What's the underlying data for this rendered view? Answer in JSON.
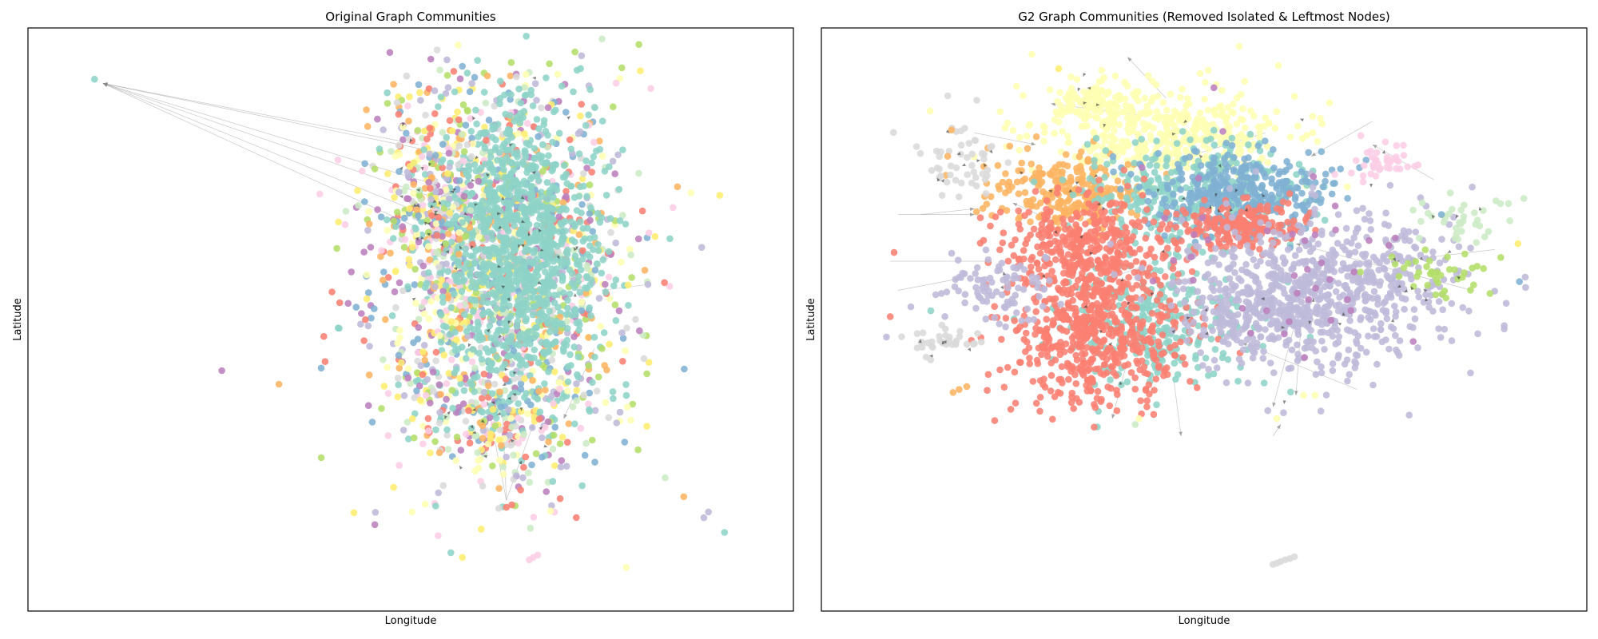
{
  "chart_data": [
    {
      "type": "scatter",
      "title": "Original Graph Communities",
      "xlabel": "Longitude",
      "ylabel": "Latitude",
      "ticks": "none",
      "grid": false,
      "legend": "none",
      "palette": [
        "#8dd3c7",
        "#ffffb3",
        "#bebada",
        "#fb8072",
        "#80b1d3",
        "#fdb462",
        "#b3de69",
        "#fccde5",
        "#d9d9d9",
        "#bc80bd",
        "#ccebc5",
        "#ffed6f"
      ],
      "edge_color": "#999999",
      "note_values": "normalized coordinates: x in [0,1] left to right, y in [0,1] bottom to top",
      "xlim": [
        0,
        1
      ],
      "ylim": [
        0,
        1
      ],
      "clusters": [
        {
          "community": "mixed",
          "center": [
            0.61,
            0.58
          ],
          "spread": [
            0.085,
            0.17
          ],
          "count": 1600
        },
        {
          "community": 0,
          "center": [
            0.64,
            0.62
          ],
          "spread": [
            0.05,
            0.13
          ],
          "count": 1000
        },
        {
          "community": "mixed",
          "center": [
            0.62,
            0.32
          ],
          "spread": [
            0.05,
            0.04
          ],
          "count": 140
        },
        {
          "community": "mixed",
          "center": [
            0.53,
            0.72
          ],
          "spread": [
            0.03,
            0.08
          ],
          "count": 160
        }
      ],
      "points": [
        {
          "x": 0.087,
          "y": 0.912,
          "community": 0
        },
        {
          "x": 0.625,
          "y": 0.178,
          "community": 3
        },
        {
          "x": 0.632,
          "y": 0.182,
          "community": 3
        },
        {
          "x": 0.615,
          "y": 0.176,
          "community": 8
        },
        {
          "x": 0.66,
          "y": 0.092,
          "community": 7
        },
        {
          "x": 0.655,
          "y": 0.088,
          "community": 7
        },
        {
          "x": 0.666,
          "y": 0.096,
          "community": 7
        },
        {
          "x": 0.889,
          "y": 0.17,
          "community": 2
        },
        {
          "x": 0.883,
          "y": 0.16,
          "community": 2
        },
        {
          "x": 0.91,
          "y": 0.135,
          "community": 0
        },
        {
          "x": 0.81,
          "y": 0.56,
          "community": 2
        },
        {
          "x": 0.79,
          "y": 0.355,
          "community": 6
        },
        {
          "x": 0.783,
          "y": 0.35,
          "community": 1
        },
        {
          "x": 0.58,
          "y": 0.905,
          "community": 2
        },
        {
          "x": 0.63,
          "y": 0.85,
          "community": 0
        },
        {
          "x": 0.49,
          "y": 0.83,
          "community": 1
        },
        {
          "x": 0.47,
          "y": 0.75,
          "community": 11
        },
        {
          "x": 0.48,
          "y": 0.78,
          "community": 1
        },
        {
          "x": 0.75,
          "y": 0.45,
          "community": 6
        },
        {
          "x": 0.52,
          "y": 0.37,
          "community": 7
        }
      ],
      "edges": [
        [
          [
            0.098,
            0.905
          ],
          [
            0.51,
            0.8
          ]
        ],
        [
          [
            0.098,
            0.905
          ],
          [
            0.505,
            0.66
          ]
        ],
        [
          [
            0.098,
            0.905
          ],
          [
            0.535,
            0.73
          ]
        ],
        [
          [
            0.098,
            0.905
          ],
          [
            0.55,
            0.7
          ]
        ],
        [
          [
            0.098,
            0.905
          ],
          [
            0.56,
            0.78
          ]
        ],
        [
          [
            0.098,
            0.905
          ],
          [
            0.63,
            0.62
          ]
        ],
        [
          [
            0.62,
            0.34
          ],
          [
            0.625,
            0.19
          ]
        ],
        [
          [
            0.6,
            0.36
          ],
          [
            0.625,
            0.19
          ]
        ],
        [
          [
            0.66,
            0.32
          ],
          [
            0.625,
            0.19
          ]
        ],
        [
          [
            0.7,
            0.33
          ],
          [
            0.74,
            0.45
          ]
        ],
        [
          [
            0.75,
            0.55
          ],
          [
            0.81,
            0.56
          ]
        ]
      ]
    },
    {
      "type": "scatter",
      "title": "G2 Graph Communities (Removed Isolated & Leftmost Nodes)",
      "xlabel": "Longitude",
      "ylabel": "Latitude",
      "ticks": "none",
      "grid": false,
      "legend": "none",
      "palette": [
        "#8dd3c7",
        "#ffffb3",
        "#bebada",
        "#fb8072",
        "#80b1d3",
        "#fdb462",
        "#b3de69",
        "#fccde5",
        "#d9d9d9",
        "#bc80bd",
        "#ccebc5",
        "#ffed6f"
      ],
      "edge_color": "#999999",
      "note_values": "normalized coordinates: x in [0,1] left to right, y in [0,1] bottom to top",
      "xlim": [
        0,
        1
      ],
      "ylim": [
        0,
        1
      ],
      "clusters": [
        {
          "community": 1,
          "center": [
            0.44,
            0.82
          ],
          "spread": [
            0.085,
            0.04
          ],
          "count": 450
        },
        {
          "community": 1,
          "center": [
            0.36,
            0.88
          ],
          "spread": [
            0.03,
            0.02
          ],
          "count": 80
        },
        {
          "community": 5,
          "center": [
            0.32,
            0.72
          ],
          "spread": [
            0.05,
            0.03
          ],
          "count": 250
        },
        {
          "community": 0,
          "center": [
            0.48,
            0.72
          ],
          "spread": [
            0.07,
            0.045
          ],
          "count": 320
        },
        {
          "community": 0,
          "center": [
            0.43,
            0.5
          ],
          "spread": [
            0.06,
            0.06
          ],
          "count": 300
        },
        {
          "community": 4,
          "center": [
            0.55,
            0.72
          ],
          "spread": [
            0.06,
            0.035
          ],
          "count": 350
        },
        {
          "community": 3,
          "center": [
            0.34,
            0.62
          ],
          "spread": [
            0.055,
            0.045
          ],
          "count": 420
        },
        {
          "community": 3,
          "center": [
            0.36,
            0.47
          ],
          "spread": [
            0.06,
            0.055
          ],
          "count": 520
        },
        {
          "community": 3,
          "center": [
            0.55,
            0.66
          ],
          "spread": [
            0.04,
            0.02
          ],
          "count": 200
        },
        {
          "community": 2,
          "center": [
            0.66,
            0.55
          ],
          "spread": [
            0.085,
            0.065
          ],
          "count": 650
        },
        {
          "community": 2,
          "center": [
            0.58,
            0.52
          ],
          "spread": [
            0.05,
            0.04
          ],
          "count": 200
        },
        {
          "community": 2,
          "center": [
            0.23,
            0.56
          ],
          "spread": [
            0.035,
            0.03
          ],
          "count": 90
        },
        {
          "community": 8,
          "center": [
            0.19,
            0.77
          ],
          "spread": [
            0.03,
            0.04
          ],
          "count": 50
        },
        {
          "community": 8,
          "center": [
            0.16,
            0.46
          ],
          "spread": [
            0.025,
            0.012
          ],
          "count": 35
        },
        {
          "community": 7,
          "center": [
            0.73,
            0.77
          ],
          "spread": [
            0.025,
            0.02
          ],
          "count": 40
        },
        {
          "community": 6,
          "center": [
            0.8,
            0.58
          ],
          "spread": [
            0.04,
            0.025
          ],
          "count": 40
        },
        {
          "community": 10,
          "center": [
            0.84,
            0.67
          ],
          "spread": [
            0.03,
            0.02
          ],
          "count": 35
        },
        {
          "community": 9,
          "center": [
            0.62,
            0.62
          ],
          "spread": [
            0.09,
            0.12
          ],
          "count": 40
        }
      ],
      "points": [
        {
          "x": 0.6,
          "y": 0.085,
          "community": 8
        },
        {
          "x": 0.595,
          "y": 0.082,
          "community": 8
        },
        {
          "x": 0.606,
          "y": 0.088,
          "community": 8
        },
        {
          "x": 0.612,
          "y": 0.09,
          "community": 8
        },
        {
          "x": 0.618,
          "y": 0.093,
          "community": 8
        },
        {
          "x": 0.59,
          "y": 0.08,
          "community": 8
        },
        {
          "x": 0.18,
          "y": 0.38,
          "community": 5
        },
        {
          "x": 0.172,
          "y": 0.375,
          "community": 5
        },
        {
          "x": 0.19,
          "y": 0.385,
          "community": 5
        },
        {
          "x": 0.095,
          "y": 0.615,
          "community": 3
        },
        {
          "x": 0.09,
          "y": 0.505,
          "community": 3
        },
        {
          "x": 0.085,
          "y": 0.47,
          "community": 2
        },
        {
          "x": 0.17,
          "y": 0.825,
          "community": 5
        },
        {
          "x": 0.165,
          "y": 0.78,
          "community": 5
        },
        {
          "x": 0.645,
          "y": 0.37,
          "community": 1
        },
        {
          "x": 0.63,
          "y": 0.37,
          "community": 1
        },
        {
          "x": 0.595,
          "y": 0.33,
          "community": 1
        },
        {
          "x": 0.912,
          "y": 0.565,
          "community": 4
        },
        {
          "x": 0.91,
          "y": 0.63,
          "community": 11
        },
        {
          "x": 0.92,
          "y": 0.555,
          "community": 2
        },
        {
          "x": 0.415,
          "y": 0.33,
          "community": 1
        },
        {
          "x": 0.41,
          "y": 0.32,
          "community": 10
        },
        {
          "x": 0.275,
          "y": 0.955,
          "community": 1
        },
        {
          "x": 0.31,
          "y": 0.93,
          "community": 11
        },
        {
          "x": 0.255,
          "y": 0.9,
          "community": 1
        },
        {
          "x": 0.785,
          "y": 0.7,
          "community": 10
        },
        {
          "x": 0.81,
          "y": 0.68,
          "community": 4
        }
      ],
      "edges": [
        [
          [
            0.3,
            0.87
          ],
          [
            0.42,
            0.85
          ]
        ],
        [
          [
            0.4,
            0.95
          ],
          [
            0.45,
            0.88
          ]
        ],
        [
          [
            0.25,
            0.7
          ],
          [
            0.3,
            0.67
          ]
        ],
        [
          [
            0.2,
            0.69
          ],
          [
            0.13,
            0.68
          ]
        ],
        [
          [
            0.2,
            0.68
          ],
          [
            0.1,
            0.68
          ]
        ],
        [
          [
            0.62,
            0.63
          ],
          [
            0.85,
            0.55
          ]
        ],
        [
          [
            0.59,
            0.35
          ],
          [
            0.62,
            0.5
          ]
        ],
        [
          [
            0.6,
            0.32
          ],
          [
            0.59,
            0.3
          ]
        ],
        [
          [
            0.62,
            0.37
          ],
          [
            0.63,
            0.55
          ]
        ],
        [
          [
            0.38,
            0.33
          ],
          [
            0.4,
            0.43
          ]
        ],
        [
          [
            0.47,
            0.3
          ],
          [
            0.46,
            0.4
          ]
        ],
        [
          [
            0.18,
            0.57
          ],
          [
            0.1,
            0.55
          ]
        ],
        [
          [
            0.22,
            0.6
          ],
          [
            0.09,
            0.6
          ]
        ],
        [
          [
            0.28,
            0.8
          ],
          [
            0.2,
            0.82
          ]
        ],
        [
          [
            0.72,
            0.8
          ],
          [
            0.8,
            0.74
          ]
        ],
        [
          [
            0.75,
            0.6
          ],
          [
            0.88,
            0.62
          ]
        ],
        [
          [
            0.64,
            0.78
          ],
          [
            0.72,
            0.84
          ]
        ],
        [
          [
            0.48,
            0.78
          ],
          [
            0.58,
            0.82
          ]
        ],
        [
          [
            0.33,
            0.55
          ],
          [
            0.44,
            0.6
          ]
        ],
        [
          [
            0.55,
            0.46
          ],
          [
            0.7,
            0.38
          ]
        ]
      ]
    }
  ]
}
